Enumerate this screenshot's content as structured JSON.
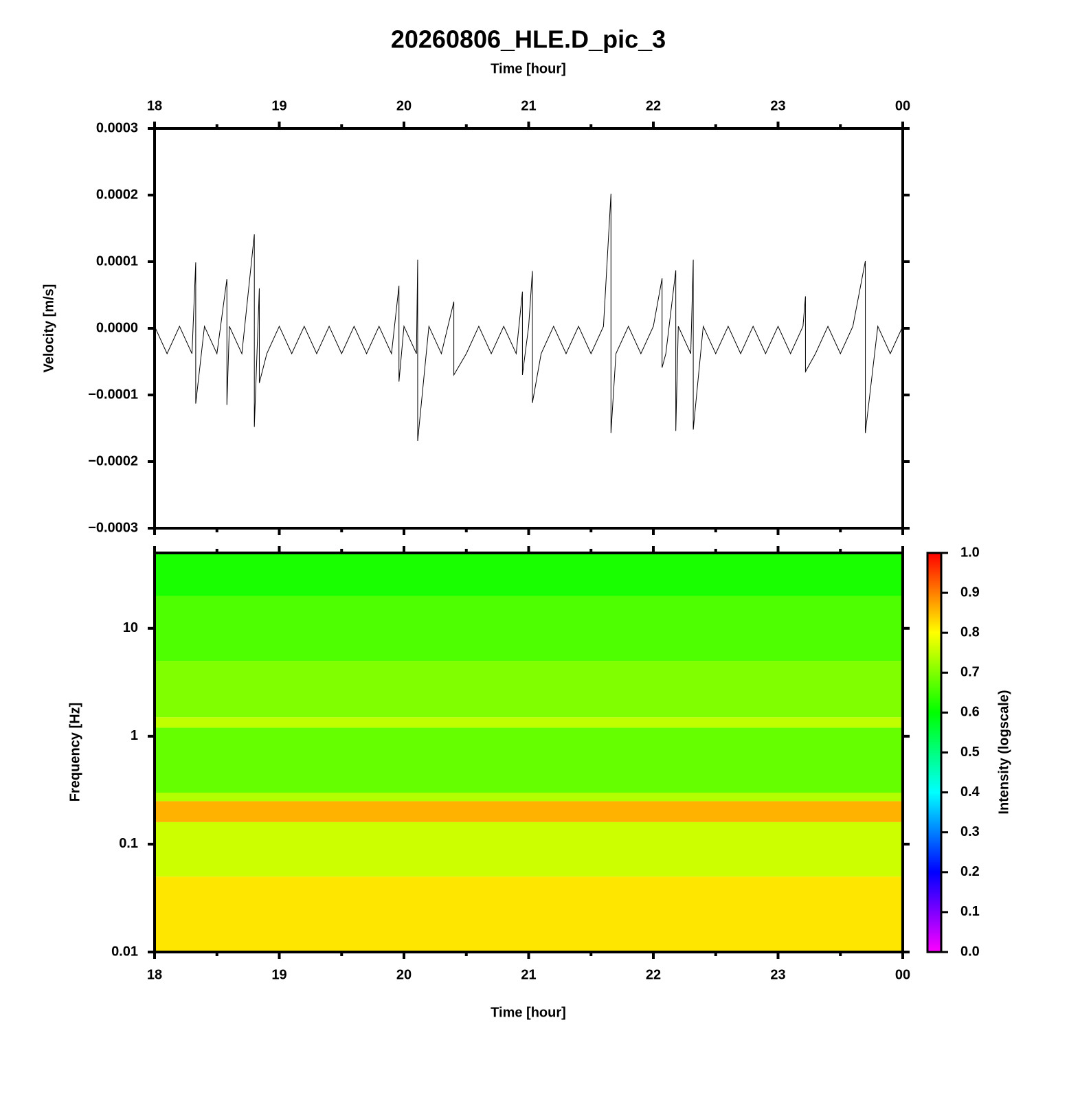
{
  "chart_data": [
    {
      "type": "line",
      "title": "20260806_HLE.D_pic_3",
      "xlabel": "Time [hour]",
      "ylabel": "Velocity [m/s]",
      "color": "#000000",
      "xlim": [
        18,
        24
      ],
      "xticks": [
        18,
        19,
        20,
        21,
        22,
        23,
        {
          "value": 24,
          "label": "00"
        }
      ],
      "xminorticks": [
        18.5,
        19.5,
        20.5,
        21.5,
        22.5,
        23.5
      ],
      "ylim": [
        -0.0003,
        0.0003
      ],
      "yticks": [
        {
          "value": -0.0003,
          "label": "−0.0003"
        },
        {
          "value": -0.0002,
          "label": "−0.0002"
        },
        {
          "value": -0.0001,
          "label": "−0.0001"
        },
        {
          "value": 0,
          "label": "0.0000"
        },
        0.0001,
        0.0002,
        0.0003
      ],
      "x": [
        18.0,
        18.1,
        18.2,
        18.3,
        18.33,
        18.33,
        18.4,
        18.5,
        18.58,
        18.58,
        18.6,
        18.7,
        18.8,
        18.8,
        18.84,
        18.84,
        18.9,
        19.0,
        19.1,
        19.2,
        19.3,
        19.4,
        19.5,
        19.6,
        19.7,
        19.8,
        19.9,
        19.96,
        19.96,
        20.0,
        20.1,
        20.11,
        20.11,
        20.2,
        20.3,
        20.4,
        20.4,
        20.5,
        20.6,
        20.7,
        20.8,
        20.9,
        20.95,
        20.95,
        21.0,
        21.03,
        21.03,
        21.1,
        21.2,
        21.3,
        21.4,
        21.5,
        21.6,
        21.66,
        21.66,
        21.7,
        21.8,
        21.9,
        22.0,
        22.07,
        22.07,
        22.1,
        22.18,
        22.18,
        22.2,
        22.3,
        22.32,
        22.32,
        22.4,
        22.5,
        22.6,
        22.7,
        22.8,
        22.9,
        23.0,
        23.1,
        23.2,
        23.22,
        23.22,
        23.3,
        23.4,
        23.5,
        23.6,
        23.7,
        23.7,
        23.8,
        23.9,
        24.0
      ],
      "values": [
        3e-06,
        -3.8e-05,
        3e-06,
        -3.8e-05,
        9.9e-05,
        -0.000113,
        3e-06,
        -3.8e-05,
        7.4e-05,
        -0.000115,
        3e-06,
        -3.8e-05,
        0.000141,
        -0.000148,
        6e-05,
        -8.2e-05,
        -3.8e-05,
        3e-06,
        -3.8e-05,
        3e-06,
        -3.8e-05,
        3e-06,
        -3.8e-05,
        3e-06,
        -3.8e-05,
        3e-06,
        -3.8e-05,
        6.4e-05,
        -8e-05,
        3e-06,
        -3.8e-05,
        0.000103,
        -0.000169,
        3e-06,
        -3.8e-05,
        4e-05,
        -7e-05,
        -3.8e-05,
        3e-06,
        -3.8e-05,
        3e-06,
        -3.8e-05,
        5.5e-05,
        -7e-05,
        3e-06,
        8.6e-05,
        -0.000112,
        -3.8e-05,
        3e-06,
        -3.8e-05,
        3e-06,
        -3.8e-05,
        3e-06,
        0.000202,
        -0.000157,
        -3.8e-05,
        3e-06,
        -3.8e-05,
        3e-06,
        7.5e-05,
        -5.9e-05,
        -3.8e-05,
        8.7e-05,
        -0.000154,
        3e-06,
        -3.8e-05,
        0.000103,
        -0.000152,
        3e-06,
        -3.8e-05,
        3e-06,
        -3.8e-05,
        3e-06,
        -3.8e-05,
        3e-06,
        -3.8e-05,
        3e-06,
        4.8e-05,
        -6.5e-05,
        -3.8e-05,
        3e-06,
        -3.8e-05,
        3e-06,
        0.000101,
        -0.000157,
        3e-06,
        -3.8e-05,
        3e-06
      ]
    },
    {
      "type": "heatmap",
      "xlabel": "Time [hour]",
      "ylabel": "Frequency [Hz]",
      "colorbar_label": "Intensity (logscale)",
      "xlim": [
        18,
        24
      ],
      "xticks": [
        18,
        19,
        20,
        21,
        22,
        23,
        {
          "value": 24,
          "label": "00"
        }
      ],
      "xminorticks": [
        18.5,
        19.5,
        20.5,
        21.5,
        22.5,
        23.5
      ],
      "ylog": true,
      "ylim": [
        0.01,
        50
      ],
      "yticks": [
        0.01,
        0.1,
        1,
        10
      ],
      "y_bins": [
        0.01,
        0.05,
        0.16,
        0.25,
        0.3,
        1.2,
        1.5,
        5,
        20,
        50
      ],
      "values": [
        0.82,
        0.76,
        0.86,
        0.74,
        0.68,
        0.75,
        0.7,
        0.66,
        0.62
      ],
      "clim": [
        0,
        1
      ],
      "cticks": [
        {
          "value": 0,
          "label": "0.0"
        },
        0.1,
        0.2,
        0.3,
        0.4,
        0.5,
        0.6,
        0.7,
        0.8,
        0.9,
        {
          "value": 1,
          "label": "1.0"
        }
      ],
      "colormap": [
        "#ff00ff",
        "#0000ff",
        "#00ffff",
        "#00ff00",
        "#ffff00",
        "#ff0000"
      ]
    }
  ]
}
